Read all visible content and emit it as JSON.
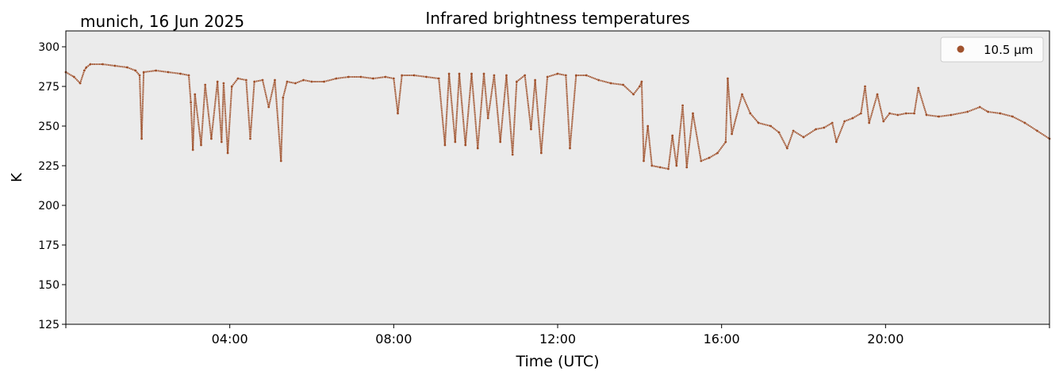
{
  "location_date": "munich, 16 Jun 2025",
  "colors": {
    "series": "#a0522d",
    "plot_bg": "#ebebeb",
    "axis": "#000000"
  },
  "chart_data": {
    "type": "scatter",
    "title": "Infrared brightness temperatures",
    "xlabel": "Time (UTC)",
    "ylabel": "K",
    "xlim_hours": [
      0,
      24
    ],
    "ylim": [
      125,
      310
    ],
    "x_ticks": [
      {
        "hour": 4,
        "label": "04:00"
      },
      {
        "hour": 8,
        "label": "08:00"
      },
      {
        "hour": 12,
        "label": "12:00"
      },
      {
        "hour": 16,
        "label": "16:00"
      },
      {
        "hour": 20,
        "label": "20:00"
      }
    ],
    "y_ticks": [
      125,
      150,
      175,
      200,
      225,
      250,
      275,
      300
    ],
    "grid": false,
    "legend_position": "top-right",
    "series": [
      {
        "name": "10.5 µm",
        "marker": "dot",
        "points": [
          [
            0.0,
            284
          ],
          [
            0.2,
            281
          ],
          [
            0.35,
            277
          ],
          [
            0.45,
            285
          ],
          [
            0.5,
            287
          ],
          [
            0.6,
            289
          ],
          [
            0.9,
            289
          ],
          [
            1.2,
            288
          ],
          [
            1.5,
            287
          ],
          [
            1.7,
            285
          ],
          [
            1.8,
            282
          ],
          [
            1.85,
            242
          ],
          [
            1.9,
            284
          ],
          [
            2.2,
            285
          ],
          [
            2.5,
            284
          ],
          [
            2.8,
            283
          ],
          [
            3.0,
            282
          ],
          [
            3.05,
            265
          ],
          [
            3.1,
            235
          ],
          [
            3.15,
            270
          ],
          [
            3.3,
            238
          ],
          [
            3.4,
            276
          ],
          [
            3.55,
            242
          ],
          [
            3.7,
            278
          ],
          [
            3.8,
            240
          ],
          [
            3.85,
            277
          ],
          [
            3.95,
            233
          ],
          [
            4.05,
            275
          ],
          [
            4.2,
            280
          ],
          [
            4.4,
            279
          ],
          [
            4.5,
            242
          ],
          [
            4.6,
            278
          ],
          [
            4.8,
            279
          ],
          [
            4.95,
            262
          ],
          [
            5.1,
            279
          ],
          [
            5.25,
            228
          ],
          [
            5.3,
            268
          ],
          [
            5.4,
            278
          ],
          [
            5.6,
            277
          ],
          [
            5.8,
            279
          ],
          [
            6.0,
            278
          ],
          [
            6.3,
            278
          ],
          [
            6.6,
            280
          ],
          [
            6.9,
            281
          ],
          [
            7.2,
            281
          ],
          [
            7.5,
            280
          ],
          [
            7.8,
            281
          ],
          [
            8.0,
            280
          ],
          [
            8.1,
            258
          ],
          [
            8.2,
            282
          ],
          [
            8.5,
            282
          ],
          [
            8.8,
            281
          ],
          [
            9.1,
            280
          ],
          [
            9.25,
            238
          ],
          [
            9.35,
            283
          ],
          [
            9.5,
            240
          ],
          [
            9.6,
            283
          ],
          [
            9.75,
            238
          ],
          [
            9.9,
            283
          ],
          [
            10.05,
            236
          ],
          [
            10.2,
            283
          ],
          [
            10.3,
            255
          ],
          [
            10.45,
            282
          ],
          [
            10.6,
            240
          ],
          [
            10.75,
            282
          ],
          [
            10.9,
            232
          ],
          [
            11.0,
            278
          ],
          [
            11.2,
            282
          ],
          [
            11.35,
            248
          ],
          [
            11.45,
            279
          ],
          [
            11.6,
            233
          ],
          [
            11.75,
            281
          ],
          [
            12.0,
            283
          ],
          [
            12.2,
            282
          ],
          [
            12.3,
            236
          ],
          [
            12.45,
            282
          ],
          [
            12.7,
            282
          ],
          [
            13.0,
            279
          ],
          [
            13.3,
            277
          ],
          [
            13.6,
            276
          ],
          [
            13.85,
            270
          ],
          [
            14.0,
            275
          ],
          [
            14.05,
            278
          ],
          [
            14.1,
            228
          ],
          [
            14.2,
            250
          ],
          [
            14.3,
            225
          ],
          [
            14.5,
            224
          ],
          [
            14.7,
            223
          ],
          [
            14.8,
            244
          ],
          [
            14.9,
            225
          ],
          [
            15.05,
            263
          ],
          [
            15.15,
            224
          ],
          [
            15.3,
            258
          ],
          [
            15.5,
            228
          ],
          [
            15.7,
            230
          ],
          [
            15.9,
            233
          ],
          [
            16.1,
            240
          ],
          [
            16.15,
            280
          ],
          [
            16.25,
            245
          ],
          [
            16.5,
            270
          ],
          [
            16.7,
            258
          ],
          [
            16.9,
            252
          ],
          [
            17.2,
            250
          ],
          [
            17.4,
            246
          ],
          [
            17.6,
            236
          ],
          [
            17.75,
            247
          ],
          [
            18.0,
            243
          ],
          [
            18.3,
            248
          ],
          [
            18.5,
            249
          ],
          [
            18.7,
            252
          ],
          [
            18.8,
            240
          ],
          [
            19.0,
            253
          ],
          [
            19.2,
            255
          ],
          [
            19.4,
            258
          ],
          [
            19.5,
            275
          ],
          [
            19.6,
            252
          ],
          [
            19.8,
            270
          ],
          [
            19.95,
            253
          ],
          [
            20.1,
            258
          ],
          [
            20.3,
            257
          ],
          [
            20.5,
            258
          ],
          [
            20.7,
            258
          ],
          [
            20.8,
            274
          ],
          [
            21.0,
            257
          ],
          [
            21.3,
            256
          ],
          [
            21.6,
            257
          ],
          [
            22.0,
            259
          ],
          [
            22.3,
            262
          ],
          [
            22.5,
            259
          ],
          [
            22.8,
            258
          ],
          [
            23.1,
            256
          ],
          [
            23.4,
            252
          ],
          [
            23.7,
            247
          ],
          [
            24.0,
            242
          ]
        ]
      }
    ]
  }
}
